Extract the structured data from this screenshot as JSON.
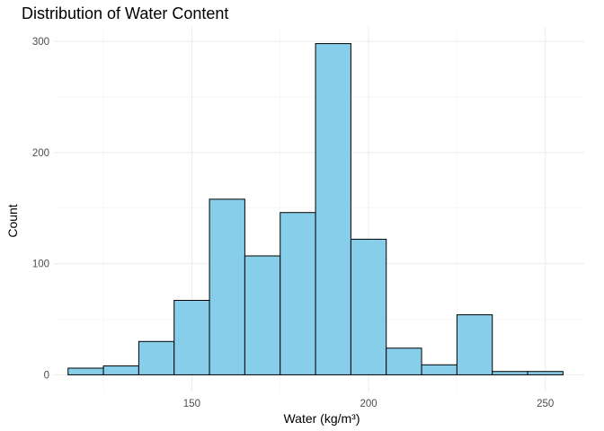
{
  "chart_data": {
    "type": "bar",
    "title": "Distribution of Water Content",
    "xlabel": "Water (kg/m³)",
    "ylabel": "Count",
    "bins": [
      {
        "x0": 115,
        "x1": 125,
        "count": 6
      },
      {
        "x0": 125,
        "x1": 135,
        "count": 8
      },
      {
        "x0": 135,
        "x1": 145,
        "count": 30
      },
      {
        "x0": 145,
        "x1": 155,
        "count": 67
      },
      {
        "x0": 155,
        "x1": 165,
        "count": 158
      },
      {
        "x0": 165,
        "x1": 175,
        "count": 107
      },
      {
        "x0": 175,
        "x1": 185,
        "count": 146
      },
      {
        "x0": 185,
        "x1": 195,
        "count": 298
      },
      {
        "x0": 195,
        "x1": 205,
        "count": 122
      },
      {
        "x0": 205,
        "x1": 215,
        "count": 24
      },
      {
        "x0": 215,
        "x1": 225,
        "count": 9
      },
      {
        "x0": 225,
        "x1": 235,
        "count": 54
      },
      {
        "x0": 235,
        "x1": 245,
        "count": 3
      },
      {
        "x0": 245,
        "x1": 255,
        "count": 3
      }
    ],
    "xlim": [
      111,
      261
    ],
    "ylim": [
      -15,
      313
    ],
    "xticks": [
      150,
      200,
      250
    ],
    "yticks": [
      0,
      100,
      200,
      300
    ],
    "grid": true,
    "legend": "none",
    "fill_color": "#87CEEB",
    "stroke_color": "#000000"
  }
}
